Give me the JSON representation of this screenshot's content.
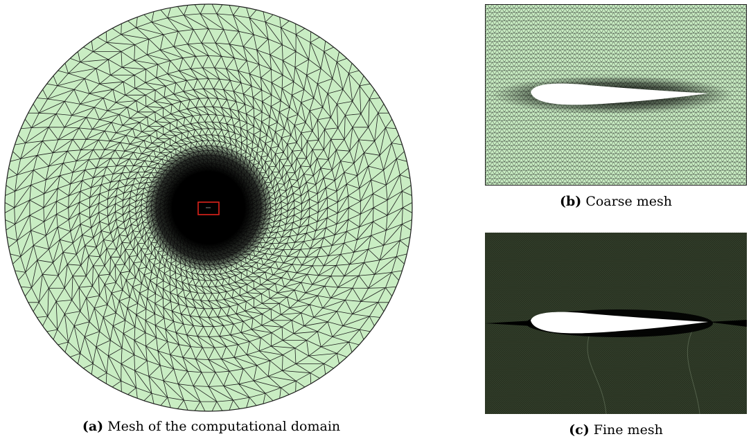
{
  "panels": {
    "a": {
      "tag": "(a)",
      "caption": "Mesh of the computational domain"
    },
    "b": {
      "tag": "(b)",
      "caption": "Coarse mesh"
    },
    "c": {
      "tag": "(c)",
      "caption": "Fine mesh"
    }
  },
  "colors": {
    "mesh_fill": "#c9edc3",
    "mesh_line": "#1c1c1c",
    "zoom_box": "#e0241b",
    "fine_mesh_fill": "#26301f",
    "airfoil": "#ffffff"
  }
}
